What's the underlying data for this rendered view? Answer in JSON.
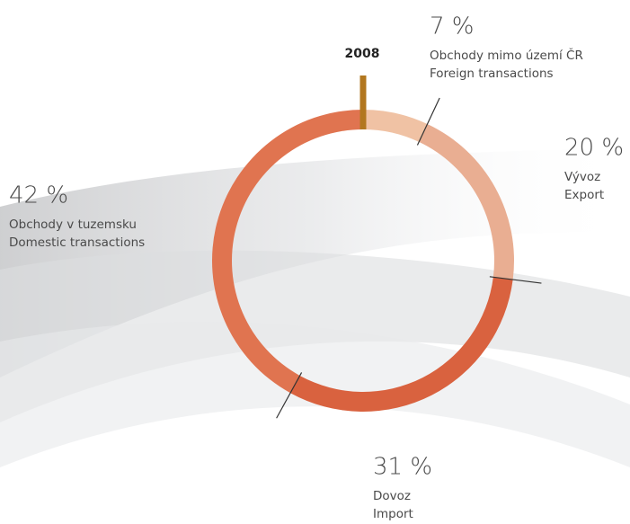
{
  "chart_data": {
    "type": "donut",
    "title": "2008",
    "categories": [
      [
        "Obchody mimo území ČR",
        "Foreign transactions"
      ],
      [
        "Vývoz",
        "Export"
      ],
      [
        "Dovoz",
        "Import"
      ],
      [
        "Obchody v tuzemsku",
        "Domestic transactions"
      ]
    ],
    "values": [
      7,
      20,
      31,
      42
    ],
    "value_labels": [
      "7 %",
      "20 %",
      "31 %",
      "42 %"
    ],
    "colors": [
      "#f0c2a4",
      "#e9ae92",
      "#d9623f",
      "#e07450"
    ]
  }
}
